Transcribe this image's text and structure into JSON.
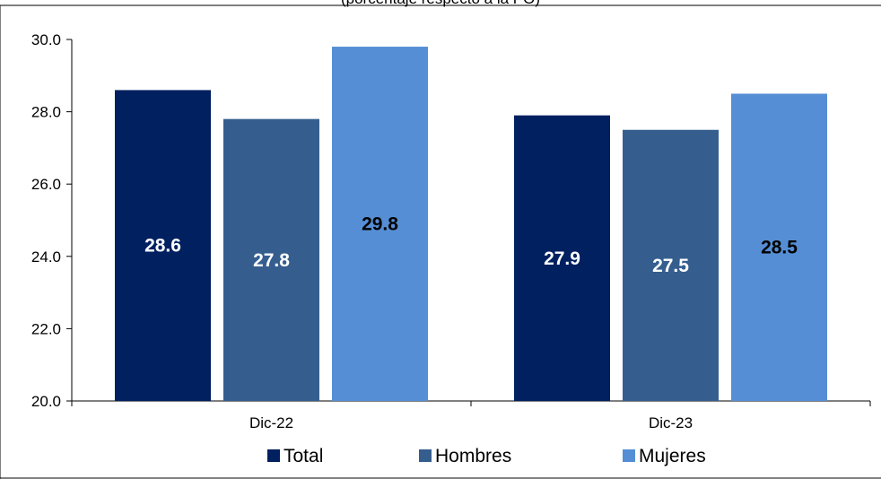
{
  "chart_data": {
    "type": "bar",
    "subtitle": "(porcentaje respecto a la PO)",
    "categories": [
      "Dic-22",
      "Dic-23"
    ],
    "series": [
      {
        "name": "Total",
        "values": [
          28.6,
          27.9
        ],
        "color": "#002060",
        "label_color": "#ffffff"
      },
      {
        "name": "Hombres",
        "values": [
          27.8,
          27.5
        ],
        "color": "#355E8F",
        "label_color": "#ffffff"
      },
      {
        "name": "Mujeres",
        "values": [
          29.8,
          28.5
        ],
        "color": "#558ED5",
        "label_color": "#000000"
      }
    ],
    "ylim": [
      20.0,
      30.0
    ],
    "yticks": [
      "20.0",
      "22.0",
      "24.0",
      "26.0",
      "28.0",
      "30.0"
    ],
    "grid": false,
    "legend_position": "bottom"
  }
}
